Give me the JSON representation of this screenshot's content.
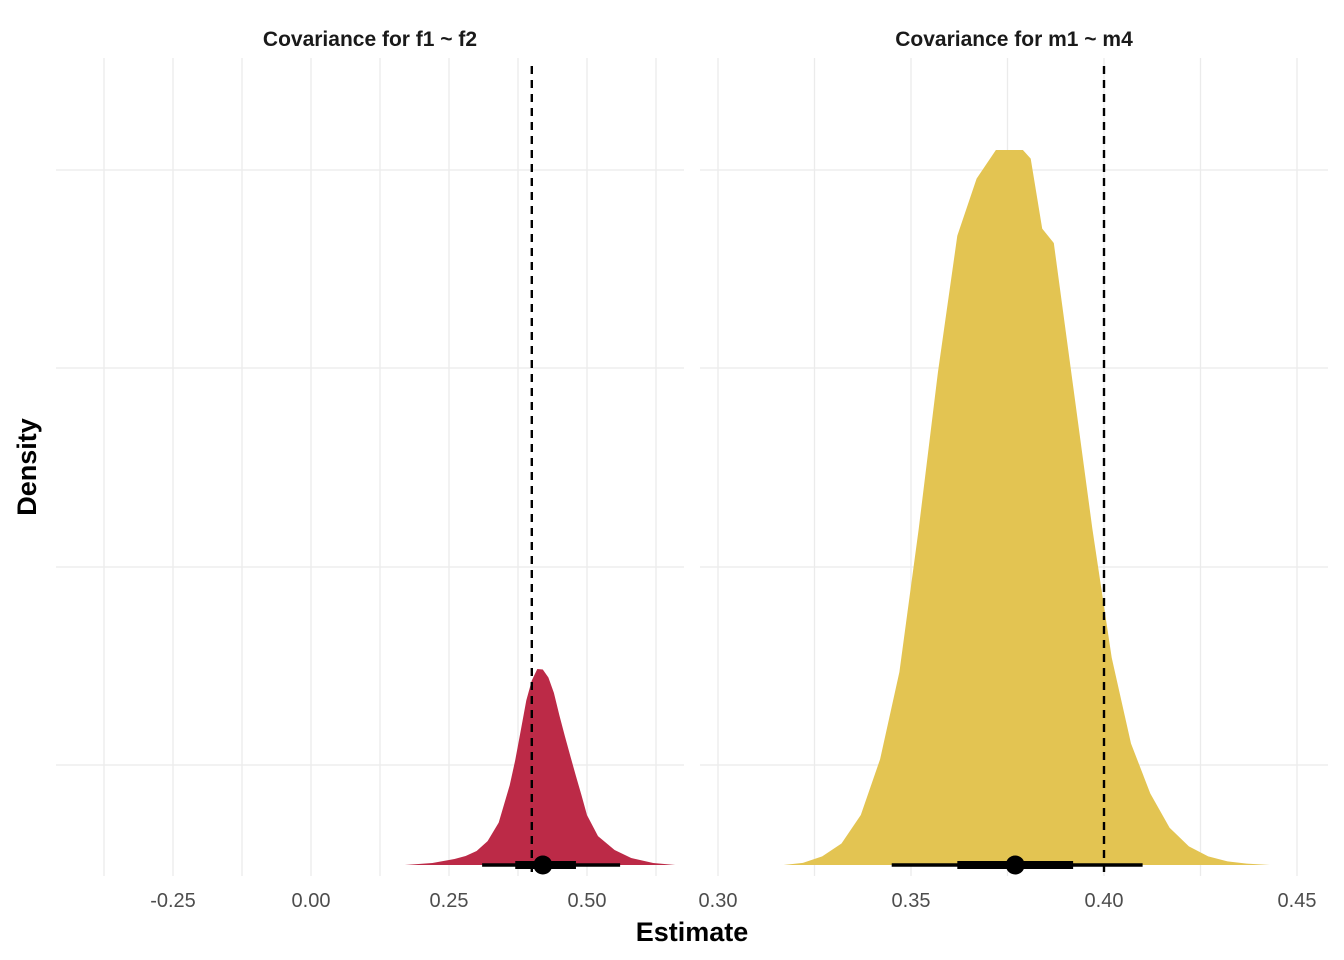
{
  "chart_data": {
    "type": "area",
    "xlabel": "Estimate",
    "ylabel": "Density",
    "grid": true,
    "panels": [
      {
        "title": "Covariance for f1 ~ f2",
        "color": "#bc2a47",
        "xlim": [
          -0.45,
          0.68
        ],
        "x_ticks": [
          -0.25,
          0.0,
          0.25,
          0.5
        ],
        "x_tick_labels": [
          "-0.25",
          "0.00",
          "0.25",
          "0.50"
        ],
        "reference_line": 0.4,
        "density_curve": {
          "x": [
            -0.42,
            -0.3,
            -0.2,
            0.17,
            0.22,
            0.26,
            0.28,
            0.3,
            0.32,
            0.34,
            0.36,
            0.37,
            0.38,
            0.39,
            0.4,
            0.41,
            0.42,
            0.43,
            0.44,
            0.45,
            0.46,
            0.47,
            0.48,
            0.49,
            0.5,
            0.52,
            0.55,
            0.58,
            0.62,
            0.66
          ],
          "y": [
            0.0,
            0.0,
            0.0,
            0.0,
            0.004,
            0.012,
            0.018,
            0.028,
            0.048,
            0.085,
            0.16,
            0.21,
            0.27,
            0.33,
            0.37,
            0.393,
            0.392,
            0.376,
            0.345,
            0.3,
            0.258,
            0.218,
            0.178,
            0.14,
            0.1,
            0.058,
            0.03,
            0.014,
            0.004,
            0.0
          ]
        },
        "point_interval": {
          "median": 0.42,
          "inner": [
            0.37,
            0.48
          ],
          "outer": [
            0.31,
            0.56
          ]
        }
      },
      {
        "title": "Covariance for m1 ~ m4",
        "color": "#e3c452",
        "xlim": [
          0.3,
          0.45
        ],
        "x_ticks": [
          0.3,
          0.35,
          0.4,
          0.45
        ],
        "x_tick_labels": [
          "0.30",
          "0.35",
          "0.40",
          "0.45"
        ],
        "reference_line": 0.4,
        "density_curve": {
          "x": [
            0.317,
            0.322,
            0.327,
            0.332,
            0.337,
            0.342,
            0.347,
            0.352,
            0.357,
            0.362,
            0.367,
            0.372,
            0.375,
            0.377,
            0.379,
            0.381,
            0.384,
            0.387,
            0.392,
            0.397,
            0.402,
            0.407,
            0.412,
            0.417,
            0.422,
            0.427,
            0.432,
            0.437,
            0.443
          ],
          "y": [
            0.0,
            0.003,
            0.012,
            0.03,
            0.07,
            0.148,
            0.27,
            0.47,
            0.69,
            0.88,
            0.96,
            1.0,
            1.0,
            1.0,
            1.0,
            0.988,
            0.89,
            0.87,
            0.67,
            0.47,
            0.29,
            0.17,
            0.1,
            0.052,
            0.026,
            0.012,
            0.005,
            0.002,
            0.0
          ]
        },
        "point_interval": {
          "median": 0.377,
          "inner": [
            0.362,
            0.392
          ],
          "outer": [
            0.345,
            0.41
          ]
        }
      }
    ]
  }
}
